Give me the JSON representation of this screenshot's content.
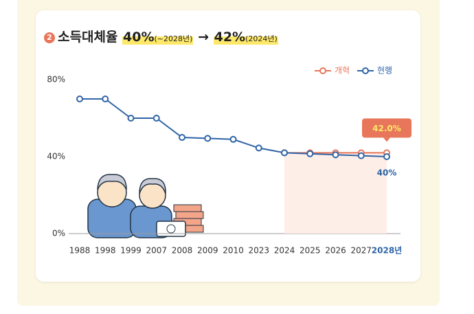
{
  "title": {
    "badge": "2",
    "main": "소득대체율",
    "a": "40%",
    "a_note": "(~2028년)",
    "arrow": "→",
    "b": "42%",
    "b_note": "(2024년)"
  },
  "chart_data": {
    "type": "line",
    "categories": [
      "1988",
      "1998",
      "1999",
      "2007",
      "2008",
      "2009",
      "2010",
      "2023",
      "2024",
      "2025",
      "2026",
      "2027",
      "2028년"
    ],
    "series": [
      {
        "name": "개혁",
        "color": "#e8765a",
        "values": [
          null,
          null,
          null,
          null,
          null,
          null,
          null,
          null,
          42,
          42,
          42,
          42,
          42
        ],
        "value_labels": [
          null,
          null,
          null,
          null,
          null,
          null,
          null,
          null,
          null,
          null,
          null,
          null,
          "42.0%"
        ]
      },
      {
        "name": "현행",
        "color": "#2f64a7",
        "values": [
          70,
          70,
          60,
          60,
          50,
          49.5,
          49,
          44.5,
          42,
          41.5,
          41,
          40.5,
          40
        ],
        "value_labels": [
          null,
          null,
          null,
          null,
          null,
          null,
          null,
          null,
          null,
          null,
          null,
          null,
          "40%"
        ]
      }
    ],
    "ylim": [
      0,
      80
    ],
    "yticks": [
      {
        "value": 0,
        "label": "0%"
      },
      {
        "value": 40,
        "label": "40%"
      },
      {
        "value": 80,
        "label": "80%"
      }
    ],
    "legend": "top-right"
  }
}
